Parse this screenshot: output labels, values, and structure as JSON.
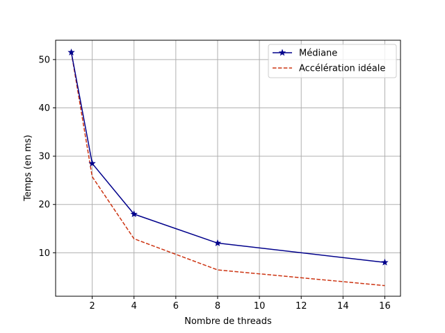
{
  "chart_data": {
    "type": "line",
    "title": "",
    "xlabel": "Nombre de threads",
    "ylabel": "Temps (en ms)",
    "xlim": [
      0.25,
      16.75
    ],
    "ylim": [
      1,
      54
    ],
    "xticks": [
      2,
      4,
      6,
      8,
      10,
      12,
      14,
      16
    ],
    "yticks": [
      10,
      20,
      30,
      40,
      50
    ],
    "grid": true,
    "legend_position": "top-right",
    "series": [
      {
        "name": "Médiane",
        "color": "#00008b",
        "style": "solid",
        "marker": "star",
        "x": [
          1,
          2,
          4,
          8,
          16
        ],
        "y": [
          51.5,
          28.5,
          18.0,
          12.0,
          8.0
        ]
      },
      {
        "name": "Accélération idéale",
        "color": "#cc3311",
        "style": "dashed",
        "marker": "none",
        "x": [
          1,
          2,
          4,
          8,
          16
        ],
        "y": [
          51.5,
          25.75,
          12.9,
          6.45,
          3.2
        ]
      }
    ]
  }
}
